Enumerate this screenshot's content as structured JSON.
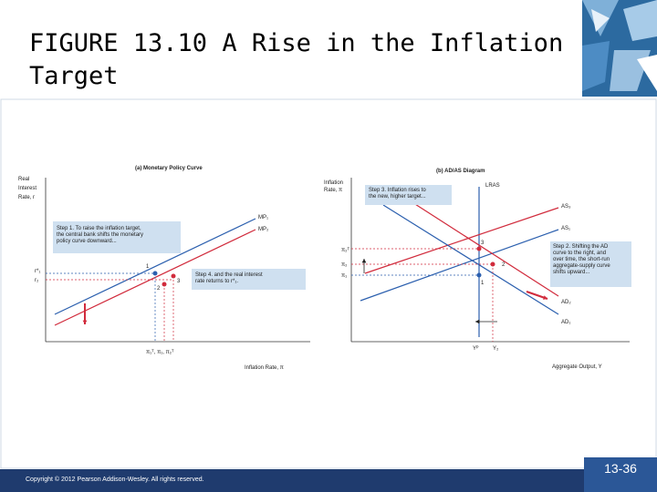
{
  "title": "FIGURE 13.10 A Rise in the Inflation Target",
  "panel_a": {
    "title": "(a) Monetary Policy Curve",
    "y_label": [
      "Real",
      "Interest",
      "Rate, r"
    ],
    "x_label": "Inflation Rate, π",
    "step1": [
      "Step 1. To raise the inflation target,",
      "the central bank shifts the monetary",
      "policy curve downward..."
    ],
    "step4": [
      "Step 4. and the real interest",
      "rate returns to r*₁."
    ],
    "curves": [
      "MP₁",
      "MP₂"
    ],
    "points": [
      "1",
      "2",
      "3"
    ],
    "y_ticks": [
      "r*₁",
      "r₂"
    ],
    "x_ticks": "π₁ᵀ, π₁, π₂ᵀ"
  },
  "panel_b": {
    "title": "(b) AD/AS Diagram",
    "y_label": [
      "Inflation",
      "Rate, π"
    ],
    "x_label": "Aggregate Output, Y",
    "step3": [
      "Step 3. Inflation rises to",
      "the new, higher target..."
    ],
    "step2": [
      "Step 2. Shifting the AD",
      "curve to the right, and",
      "over time, the short-run",
      "aggregate-supply curve",
      "shifts upward..."
    ],
    "curves": [
      "LRAS",
      "AS₃",
      "AS₁",
      "AD₂",
      "AD₁"
    ],
    "points": [
      "3",
      "2",
      "1"
    ],
    "y_ticks": [
      "π₂ᵀ",
      "π₂",
      "π₁"
    ],
    "x_ticks": [
      "Yᴾ",
      "Y₂"
    ]
  },
  "footer": {
    "copyright": "Copyright © 2012 Pearson Addison-Wesley. All rights reserved.",
    "page": "13-36"
  }
}
